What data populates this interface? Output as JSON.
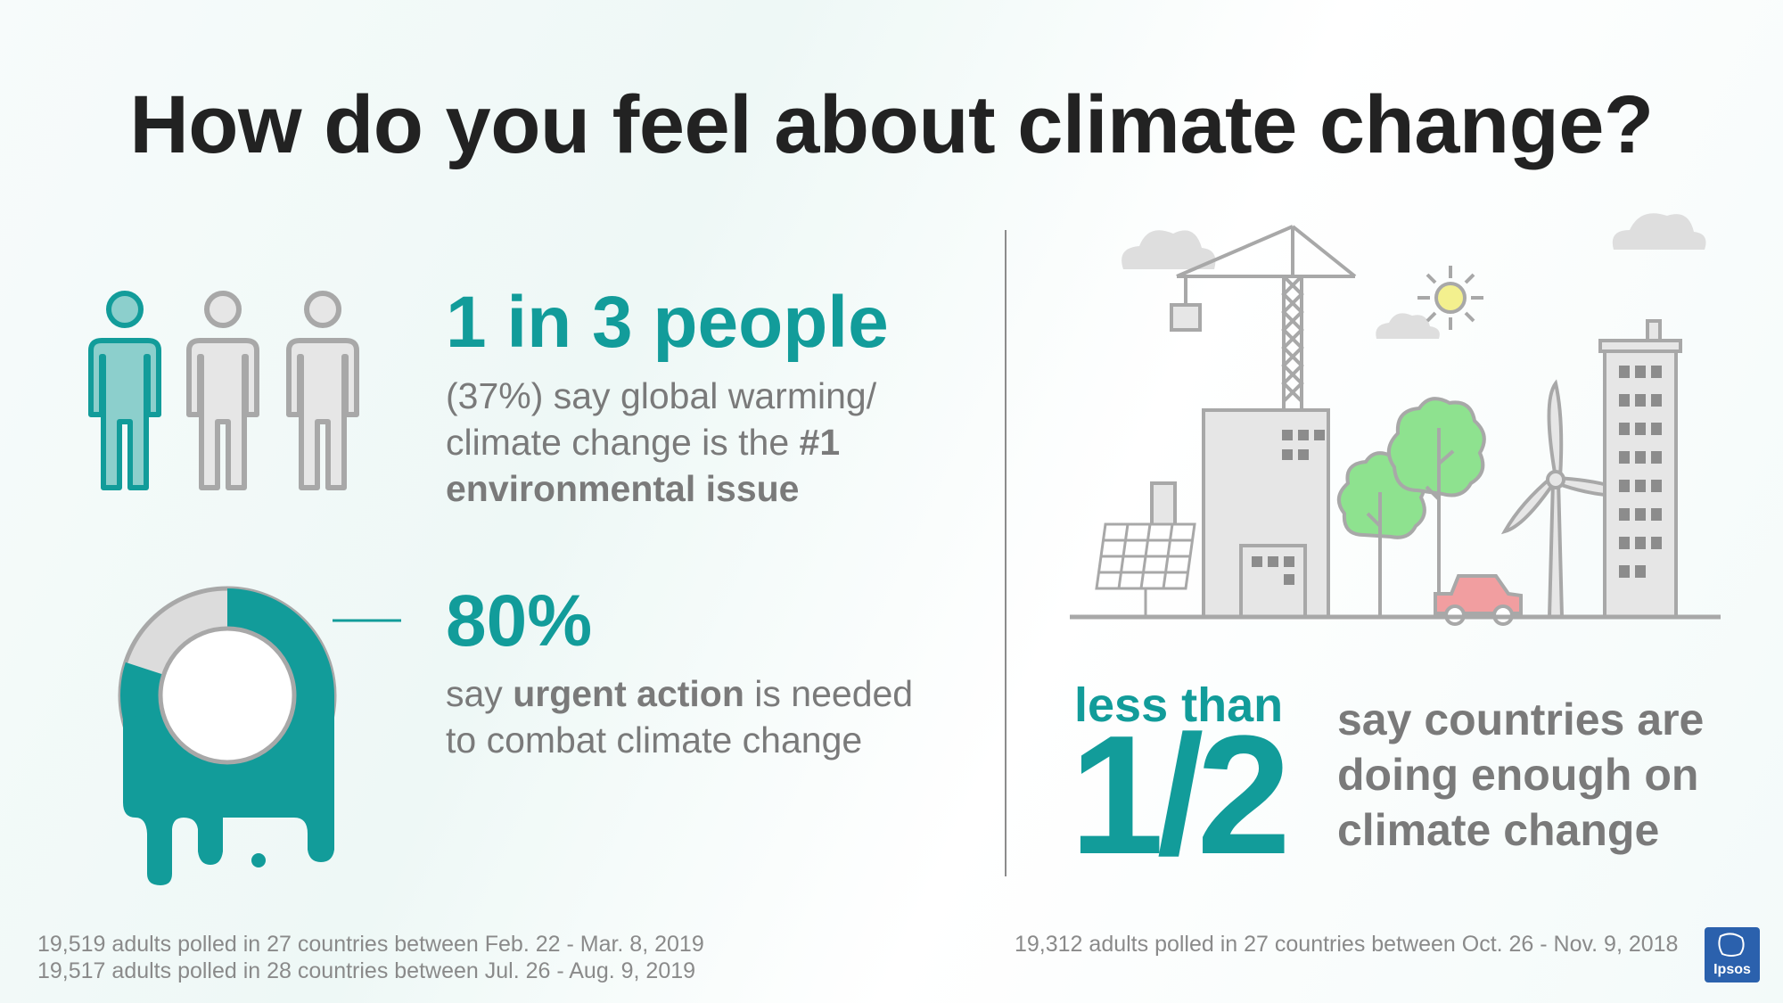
{
  "title": "How do you feel about climate change?",
  "stat1": {
    "headline": "1 in 3 people",
    "line1": "(37%) say global warming/",
    "line2_prefix": "climate change is the ",
    "line2_bold": "#1",
    "line3_bold": "environmental issue"
  },
  "stat2": {
    "headline": "80%",
    "line1_prefix": "say ",
    "line1_bold": "urgent action",
    "line1_suffix": " is needed",
    "line2": "to combat climate change",
    "donut_fraction": 0.8
  },
  "stat3": {
    "prefix": "less than",
    "big": "1/2",
    "line1": "say countries are",
    "line2": "doing enough on",
    "line3": "climate change"
  },
  "footnotes": {
    "left1": "19,519 adults polled in 27 countries between Feb. 22 - Mar. 8, 2019",
    "left2": "19,517 adults polled in 28 countries between Jul. 26 - Aug. 9, 2019",
    "right": "19,312 adults polled in 27 countries between Oct. 26 - Nov. 9, 2018"
  },
  "logo": {
    "text": "Ipsos",
    "color": "#2b61ad"
  },
  "colors": {
    "teal": "#129c9a",
    "grey": "#7a7a7a",
    "light_green": "#8ee28f",
    "car_pink": "#f19ea0"
  },
  "icons": [
    "person-icon",
    "donut-drip-icon",
    "city-scene-illustration"
  ]
}
